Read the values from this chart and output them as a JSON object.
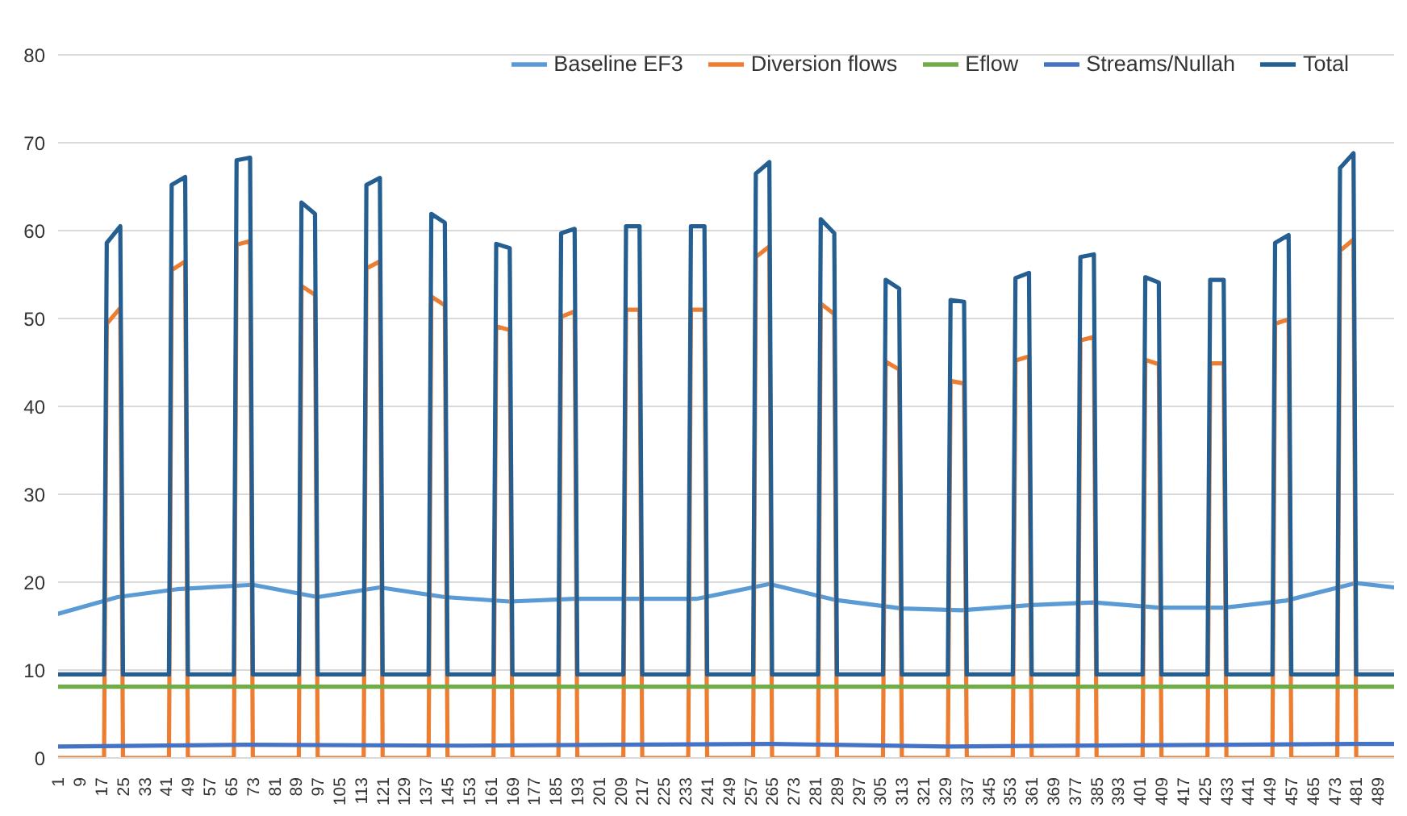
{
  "chart_data": {
    "type": "line",
    "xlim": [
      1,
      495
    ],
    "xticks": [
      1,
      9,
      17,
      25,
      33,
      41,
      49,
      57,
      65,
      73,
      81,
      89,
      97,
      105,
      113,
      121,
      129,
      137,
      145,
      153,
      161,
      169,
      177,
      185,
      193,
      201,
      209,
      217,
      225,
      233,
      241,
      249,
      257,
      265,
      273,
      281,
      289,
      297,
      305,
      313,
      321,
      329,
      337,
      345,
      353,
      361,
      369,
      377,
      385,
      393,
      401,
      409,
      417,
      425,
      433,
      441,
      449,
      457,
      465,
      473,
      481,
      489
    ],
    "ylim": [
      0,
      80
    ],
    "yticks": [
      0,
      10,
      20,
      30,
      40,
      50,
      60,
      70,
      80
    ],
    "grid": "y",
    "legend": "top right",
    "series": [
      {
        "name": "Baseline EF3",
        "color": "#5b9bd5",
        "x": [
          1,
          23,
          45,
          73,
          97,
          120,
          144,
          168,
          192,
          237,
          264,
          288,
          313,
          335,
          361,
          384,
          408,
          432,
          455,
          481,
          495
        ],
        "values": [
          16.4,
          18.3,
          19.2,
          19.7,
          18.3,
          19.4,
          18.3,
          17.8,
          18.1,
          18.1,
          19.8,
          18.0,
          17.0,
          16.8,
          17.4,
          17.7,
          17.1,
          17.1,
          17.9,
          19.9,
          19.4
        ]
      },
      {
        "name": "Diversion flows",
        "color": "#ed7d31",
        "x": [
          1,
          18,
          19,
          24,
          25,
          42,
          43,
          48,
          49,
          66,
          67,
          72,
          73,
          90,
          91,
          96,
          97,
          114,
          115,
          120,
          121,
          138,
          139,
          144,
          145,
          162,
          163,
          168,
          169,
          186,
          187,
          192,
          193,
          210,
          211,
          216,
          217,
          234,
          235,
          240,
          241,
          258,
          259,
          264,
          265,
          282,
          283,
          288,
          289,
          306,
          307,
          312,
          313,
          330,
          331,
          336,
          337,
          354,
          355,
          360,
          361,
          378,
          379,
          384,
          385,
          402,
          403,
          408,
          409,
          426,
          427,
          432,
          433,
          450,
          451,
          456,
          457,
          474,
          475,
          480,
          481,
          495
        ],
        "values": [
          0,
          0,
          49.4,
          51.2,
          0,
          0,
          55.5,
          56.5,
          0,
          0,
          58.4,
          58.8,
          0,
          0,
          53.7,
          52.7,
          0,
          0,
          55.7,
          56.5,
          0,
          0,
          52.5,
          51.5,
          0,
          0,
          49.1,
          48.7,
          0,
          0,
          50.2,
          50.8,
          0,
          0,
          51.0,
          51.0,
          0,
          0,
          51.0,
          51.0,
          0,
          0,
          57.0,
          58.2,
          0,
          0,
          51.7,
          50.5,
          0,
          0,
          45.1,
          44.2,
          0,
          0,
          42.9,
          42.6,
          0,
          0,
          45.2,
          45.7,
          0,
          0,
          47.5,
          47.9,
          0,
          0,
          45.3,
          44.8,
          0,
          0,
          44.9,
          44.9,
          0,
          0,
          49.4,
          49.9,
          0,
          0,
          57.7,
          59.0,
          0,
          0
        ]
      },
      {
        "name": "Eflow",
        "color": "#70ad47",
        "x": [
          1,
          495
        ],
        "values": [
          8.1,
          8.1
        ]
      },
      {
        "name": "Streams/Nullah",
        "color": "#4472c4",
        "x": [
          1,
          70,
          150,
          265,
          330,
          480,
          495
        ],
        "values": [
          1.3,
          1.5,
          1.4,
          1.6,
          1.3,
          1.6,
          1.6
        ]
      },
      {
        "name": "Total",
        "color": "#255e91",
        "x": [
          1,
          18,
          19,
          24,
          25,
          42,
          43,
          48,
          49,
          66,
          67,
          72,
          73,
          90,
          91,
          96,
          97,
          114,
          115,
          120,
          121,
          138,
          139,
          144,
          145,
          162,
          163,
          168,
          169,
          186,
          187,
          192,
          193,
          210,
          211,
          216,
          217,
          234,
          235,
          240,
          241,
          258,
          259,
          264,
          265,
          282,
          283,
          288,
          289,
          306,
          307,
          312,
          313,
          330,
          331,
          336,
          337,
          354,
          355,
          360,
          361,
          378,
          379,
          384,
          385,
          402,
          403,
          408,
          409,
          426,
          427,
          432,
          433,
          450,
          451,
          456,
          457,
          474,
          475,
          480,
          481,
          495
        ],
        "values": [
          9.5,
          9.5,
          58.6,
          60.5,
          9.5,
          9.5,
          65.2,
          66.1,
          9.5,
          9.5,
          68.0,
          68.3,
          9.5,
          9.5,
          63.2,
          61.9,
          9.5,
          9.5,
          65.2,
          66.0,
          9.5,
          9.5,
          61.9,
          60.9,
          9.5,
          9.5,
          58.5,
          58.0,
          9.5,
          9.5,
          59.7,
          60.2,
          9.5,
          9.5,
          60.5,
          60.5,
          9.5,
          9.5,
          60.5,
          60.5,
          9.5,
          9.5,
          66.5,
          67.8,
          9.5,
          9.5,
          61.3,
          59.7,
          9.5,
          9.5,
          54.4,
          53.4,
          9.5,
          9.5,
          52.1,
          51.9,
          9.5,
          9.5,
          54.6,
          55.2,
          9.5,
          9.5,
          57.0,
          57.3,
          9.5,
          9.5,
          54.7,
          54.1,
          9.5,
          9.5,
          54.4,
          54.4,
          9.5,
          9.5,
          58.6,
          59.5,
          9.5,
          9.5,
          67.1,
          68.8,
          9.5,
          9.5
        ]
      }
    ]
  }
}
